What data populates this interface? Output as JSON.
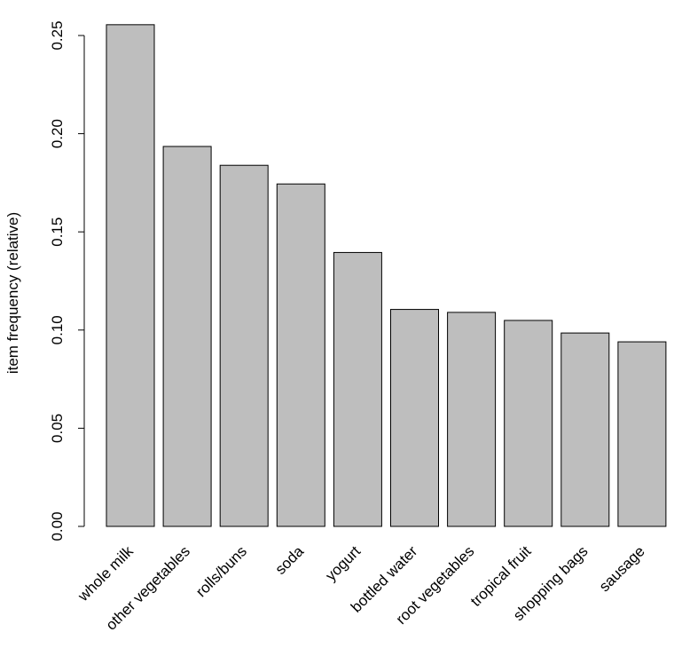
{
  "chart_data": {
    "type": "bar",
    "title": "",
    "xlabel": "",
    "ylabel": "item frequency (relative)",
    "categories": [
      "whole milk",
      "other vegetables",
      "rolls/buns",
      "soda",
      "yogurt",
      "bottled water",
      "root vegetables",
      "tropical fruit",
      "shopping bags",
      "sausage"
    ],
    "values": [
      0.2555,
      0.1935,
      0.1839,
      0.1744,
      0.1395,
      0.1105,
      0.109,
      0.1049,
      0.0985,
      0.094
    ],
    "ylim": [
      0,
      0.25
    ],
    "yticks": [
      "0.00",
      "0.05",
      "0.10",
      "0.15",
      "0.20",
      "0.25"
    ],
    "grid": false,
    "bar_color": "#bebebe",
    "border_color": "#000000"
  }
}
